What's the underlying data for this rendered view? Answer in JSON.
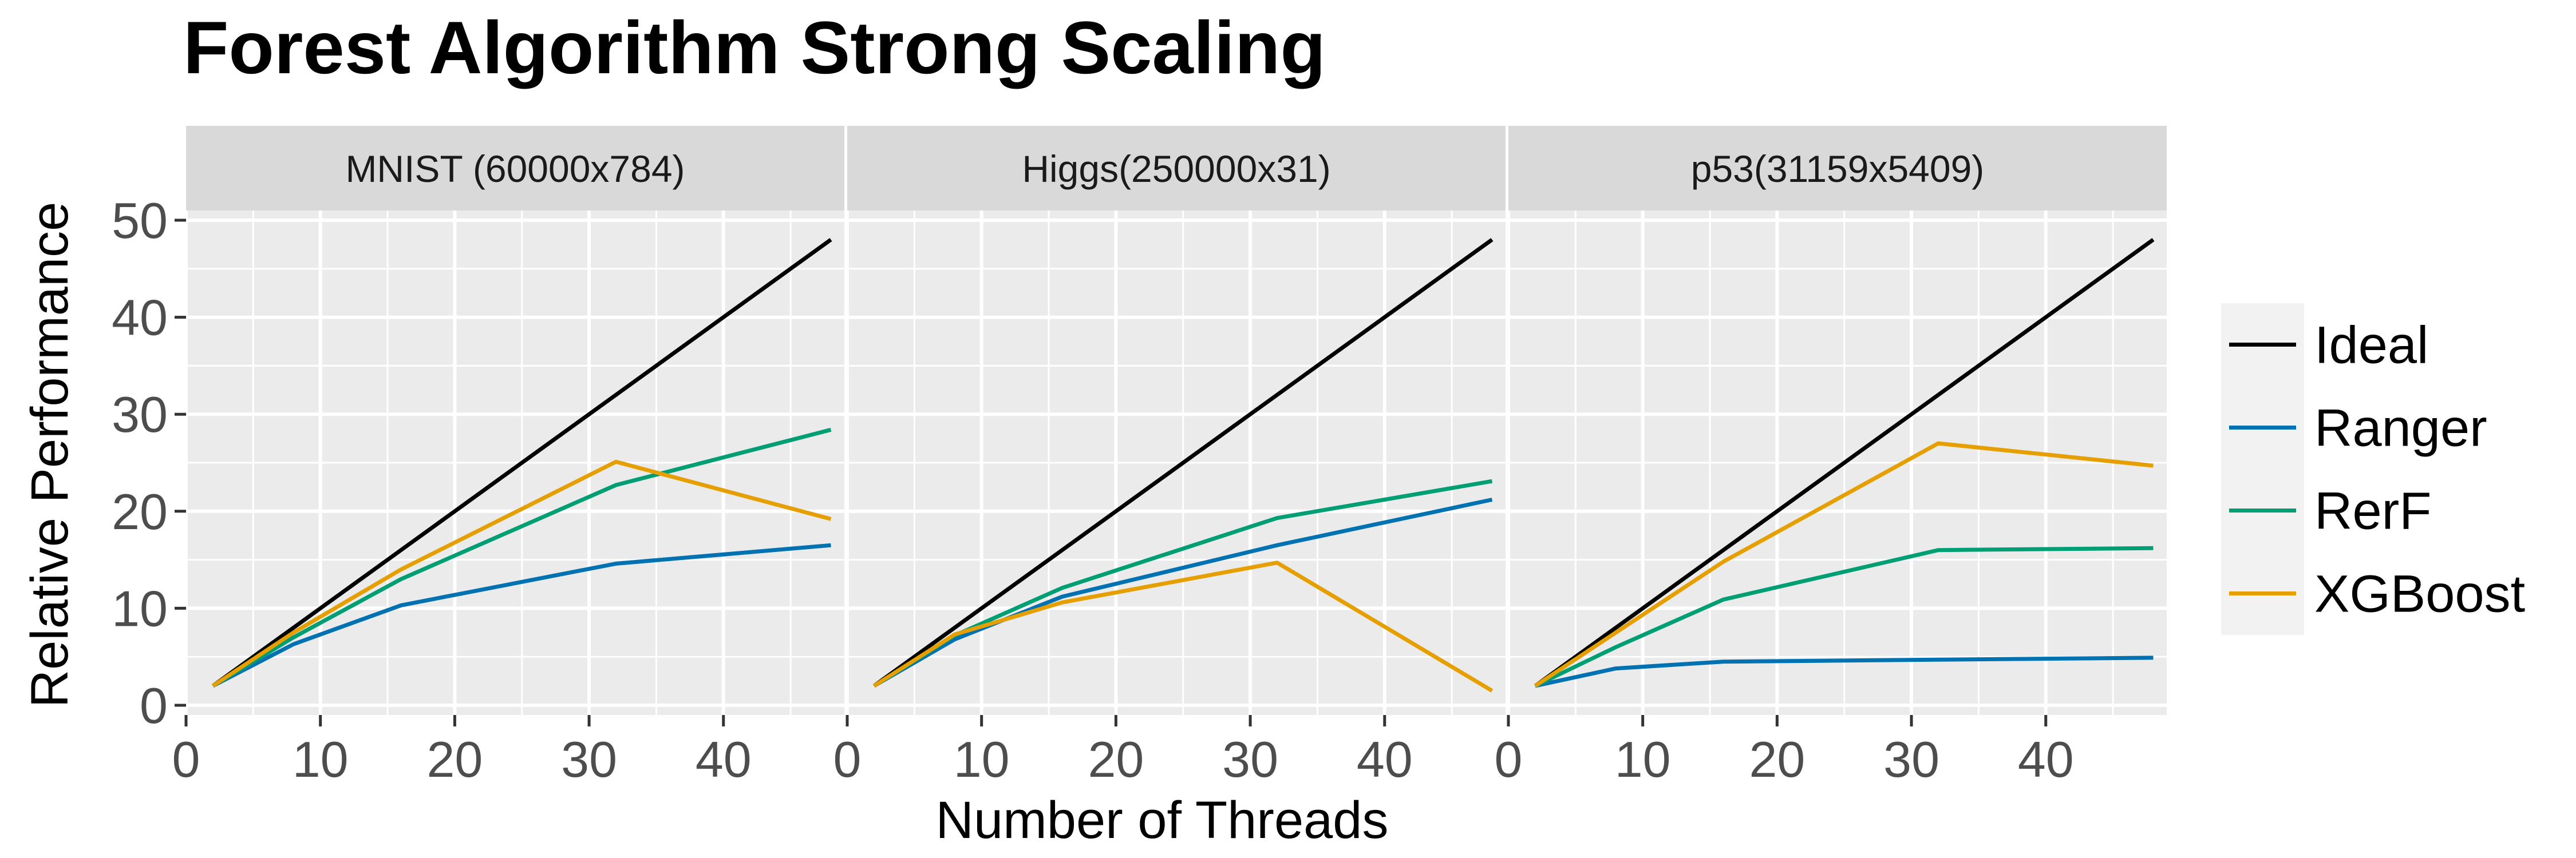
{
  "chart_data": {
    "type": "line",
    "title": "Forest Algorithm Strong Scaling",
    "xlabel": "Number of Threads",
    "ylabel": "Relative Performance",
    "xlim": [
      0,
      49
    ],
    "ylim": [
      -1,
      51
    ],
    "x_ticks": [
      0,
      10,
      20,
      30,
      40
    ],
    "y_ticks": [
      0,
      10,
      20,
      30,
      40,
      50
    ],
    "grid": true,
    "legend_position": "right",
    "x": [
      2,
      8,
      16,
      32,
      48
    ],
    "legend": [
      {
        "name": "Ideal",
        "color": "#000000"
      },
      {
        "name": "Ranger",
        "color": "#0072B2"
      },
      {
        "name": "RerF",
        "color": "#009E73"
      },
      {
        "name": "XGBoost",
        "color": "#E69F00"
      }
    ],
    "panels": [
      {
        "label": "MNIST (60000x784)",
        "series": [
          {
            "name": "Ideal",
            "values": [
              2,
              8,
              16,
              32,
              48
            ]
          },
          {
            "name": "Ranger",
            "values": [
              2,
              6.3,
              10.3,
              14.6,
              16.5
            ]
          },
          {
            "name": "RerF",
            "values": [
              2,
              7,
              13,
              22.7,
              28.4
            ]
          },
          {
            "name": "XGBoost",
            "values": [
              2,
              7.5,
              14,
              25.1,
              19.2
            ]
          }
        ]
      },
      {
        "label": "Higgs(250000x31)",
        "series": [
          {
            "name": "Ideal",
            "values": [
              2,
              8,
              16,
              32,
              48
            ]
          },
          {
            "name": "Ranger",
            "values": [
              2,
              6.8,
              11.2,
              16.5,
              21.2
            ]
          },
          {
            "name": "RerF",
            "values": [
              2,
              7.2,
              12.1,
              19.3,
              23.1
            ]
          },
          {
            "name": "XGBoost",
            "values": [
              2,
              7.3,
              10.6,
              14.7,
              1.5
            ]
          }
        ]
      },
      {
        "label": "p53(31159x5409)",
        "series": [
          {
            "name": "Ideal",
            "values": [
              2,
              8,
              16,
              32,
              48
            ]
          },
          {
            "name": "Ranger",
            "values": [
              2,
              3.8,
              4.5,
              4.7,
              4.9
            ]
          },
          {
            "name": "RerF",
            "values": [
              2,
              6,
              10.9,
              16,
              16.2
            ]
          },
          {
            "name": "XGBoost",
            "values": [
              2,
              7.5,
              14.8,
              27,
              24.7
            ]
          }
        ]
      }
    ]
  }
}
